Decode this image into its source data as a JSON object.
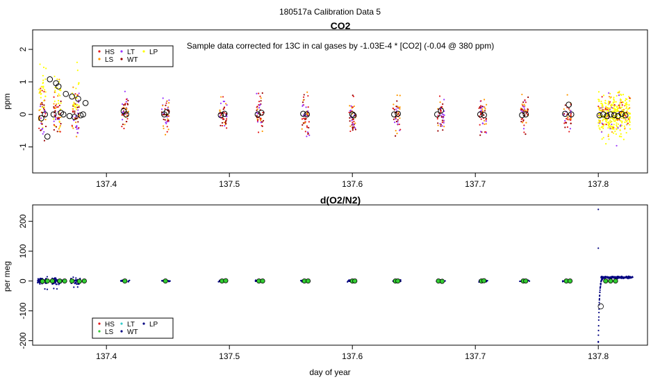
{
  "page_title": "180517a   Calibration Data 5",
  "xlabel": "day of year",
  "chart_data": [
    {
      "type": "scatter",
      "title": "CO2",
      "annotation": "Sample data corrected for 13C in cal gases by -1.03E-4 * [CO2] (-0.04 @ 380 ppm)",
      "ylabel": "ppm",
      "xlim": [
        137.34,
        137.84
      ],
      "ylim": [
        -1.8,
        2.6
      ],
      "xticks": [
        "137.4",
        "137.5",
        "137.6",
        "137.7",
        "137.8"
      ],
      "yticks": [
        "-1",
        "0",
        "1",
        "2"
      ],
      "legend": [
        "HS",
        "LS",
        "LT",
        "WT",
        "LP"
      ],
      "legend_position": "top-left",
      "series_colors": {
        "HS": "#e41a1c",
        "LS": "#ff9900",
        "LT": "#9933ff",
        "WT": "#990000",
        "LP": "#ffff00"
      },
      "clusters": [
        137.348,
        137.36,
        137.375,
        137.415,
        137.448,
        137.495,
        137.525,
        137.562,
        137.6,
        137.636,
        137.672,
        137.706,
        137.74,
        137.775
      ],
      "lp_range": [
        137.8,
        137.826
      ],
      "means": [
        {
          "x": 137.347,
          "y": -0.12
        },
        {
          "x": 137.35,
          "y": 0.0
        },
        {
          "x": 137.352,
          "y": -0.68
        },
        {
          "x": 137.354,
          "y": 1.08
        },
        {
          "x": 137.357,
          "y": 0.0
        },
        {
          "x": 137.359,
          "y": 0.96
        },
        {
          "x": 137.361,
          "y": 0.86
        },
        {
          "x": 137.363,
          "y": 0.05
        },
        {
          "x": 137.365,
          "y": 0.0
        },
        {
          "x": 137.367,
          "y": 0.63
        },
        {
          "x": 137.37,
          "y": -0.05
        },
        {
          "x": 137.372,
          "y": 0.55
        },
        {
          "x": 137.374,
          "y": -0.08
        },
        {
          "x": 137.377,
          "y": 0.48
        },
        {
          "x": 137.379,
          "y": -0.03
        },
        {
          "x": 137.381,
          "y": 0.0
        },
        {
          "x": 137.383,
          "y": 0.35
        },
        {
          "x": 137.414,
          "y": 0.1
        },
        {
          "x": 137.416,
          "y": 0.0
        },
        {
          "x": 137.447,
          "y": 0.0
        },
        {
          "x": 137.449,
          "y": 0.07
        },
        {
          "x": 137.493,
          "y": -0.02
        },
        {
          "x": 137.496,
          "y": 0.02
        },
        {
          "x": 137.523,
          "y": 0.0
        },
        {
          "x": 137.526,
          "y": 0.05
        },
        {
          "x": 137.56,
          "y": 0.02
        },
        {
          "x": 137.563,
          "y": 0.0
        },
        {
          "x": 137.6,
          "y": 0.0
        },
        {
          "x": 137.601,
          "y": -0.03
        },
        {
          "x": 137.634,
          "y": 0.0
        },
        {
          "x": 137.637,
          "y": 0.02
        },
        {
          "x": 137.669,
          "y": 0.0
        },
        {
          "x": 137.672,
          "y": 0.12
        },
        {
          "x": 137.704,
          "y": 0.0
        },
        {
          "x": 137.707,
          "y": -0.02
        },
        {
          "x": 137.738,
          "y": -0.02
        },
        {
          "x": 137.741,
          "y": 0.0
        },
        {
          "x": 137.773,
          "y": 0.02
        },
        {
          "x": 137.776,
          "y": 0.3
        },
        {
          "x": 137.778,
          "y": 0.0
        },
        {
          "x": 137.801,
          "y": -0.03
        },
        {
          "x": 137.804,
          "y": 0.0
        },
        {
          "x": 137.807,
          "y": -0.05
        },
        {
          "x": 137.81,
          "y": 0.0
        },
        {
          "x": 137.813,
          "y": -0.02
        },
        {
          "x": 137.816,
          "y": -0.05
        },
        {
          "x": 137.819,
          "y": 0.02
        },
        {
          "x": 137.822,
          "y": -0.03
        }
      ]
    },
    {
      "type": "scatter",
      "title": "d(O2/N2)",
      "ylabel": "per meg",
      "xlim": [
        137.34,
        137.84
      ],
      "ylim": [
        -215,
        255
      ],
      "xticks": [
        "137.4",
        "137.5",
        "137.6",
        "137.7",
        "137.8"
      ],
      "yticks": [
        "-200",
        "-100",
        "0",
        "100",
        "200"
      ],
      "legend": [
        "HS",
        "LS",
        "LT",
        "WT",
        "LP"
      ],
      "legend_position": "bottom-left",
      "series_colors": {
        "HS": "#e41a1c",
        "LS": "#33cc33",
        "LT": "#33cccc",
        "WT": "#000080",
        "LP": "#000080"
      },
      "clusters": [
        137.348,
        137.36,
        137.375,
        137.415,
        137.448,
        137.495,
        137.525,
        137.562,
        137.6,
        137.636,
        137.672,
        137.706,
        137.74,
        137.775
      ],
      "spike": {
        "x": 137.8,
        "values": [
          240,
          110,
          -205
        ]
      },
      "lp_range": [
        137.8,
        137.826
      ],
      "lp_level": 12,
      "means": [
        {
          "x": 137.348,
          "y": -1
        },
        {
          "x": 137.352,
          "y": 0
        },
        {
          "x": 137.356,
          "y": 0
        },
        {
          "x": 137.362,
          "y": 0
        },
        {
          "x": 137.366,
          "y": 0
        },
        {
          "x": 137.372,
          "y": 0
        },
        {
          "x": 137.378,
          "y": -1
        },
        {
          "x": 137.382,
          "y": 0
        },
        {
          "x": 137.415,
          "y": 0
        },
        {
          "x": 137.448,
          "y": 0
        },
        {
          "x": 137.494,
          "y": 0
        },
        {
          "x": 137.497,
          "y": 1
        },
        {
          "x": 137.524,
          "y": 0
        },
        {
          "x": 137.527,
          "y": 0
        },
        {
          "x": 137.561,
          "y": 0
        },
        {
          "x": 137.564,
          "y": 0
        },
        {
          "x": 137.6,
          "y": 0
        },
        {
          "x": 137.602,
          "y": 0
        },
        {
          "x": 137.635,
          "y": 0
        },
        {
          "x": 137.637,
          "y": 0
        },
        {
          "x": 137.67,
          "y": 0
        },
        {
          "x": 137.673,
          "y": -1
        },
        {
          "x": 137.705,
          "y": 0
        },
        {
          "x": 137.707,
          "y": 1
        },
        {
          "x": 137.739,
          "y": 0
        },
        {
          "x": 137.741,
          "y": 0
        },
        {
          "x": 137.774,
          "y": 0
        },
        {
          "x": 137.777,
          "y": 0
        },
        {
          "x": 137.802,
          "y": -85
        },
        {
          "x": 137.806,
          "y": 0
        },
        {
          "x": 137.81,
          "y": 0
        },
        {
          "x": 137.814,
          "y": 0
        }
      ]
    }
  ]
}
